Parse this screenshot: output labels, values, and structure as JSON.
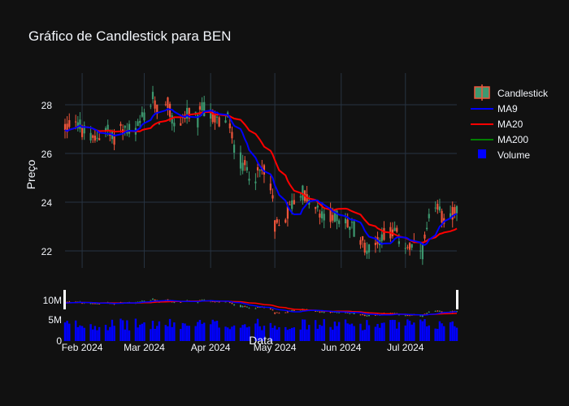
{
  "colors": {
    "background": "#111111",
    "grid": "#283442",
    "text": "#f2f5fa",
    "increasing": "#3d9970",
    "decreasing": "#ef553b",
    "ma9": "#0000ff",
    "ma20": "#ff0000",
    "ma200": "#008000",
    "volume": "#0000ff"
  },
  "chart_data": {
    "type": "candlestick",
    "title": "Gráfico de Candlestick para BEN",
    "ylabel": "Preço",
    "xlabel": "Data",
    "ylim": [
      21.3,
      29.3
    ],
    "y_ticks": [
      22,
      24,
      26,
      28
    ],
    "y_tick_labels": [
      "22",
      "24",
      "26",
      "28"
    ],
    "x_ticks": [
      "2024-02-01",
      "2024-03-01",
      "2024-04-01",
      "2024-05-01",
      "2024-06-01",
      "2024-07-01"
    ],
    "x_tick_labels": [
      "Feb 2024",
      "Mar 2024",
      "Apr 2024",
      "May 2024",
      "Jun 2024",
      "Jul 2024"
    ],
    "x_range": [
      "2024-01-24",
      "2024-07-25"
    ],
    "legend": {
      "placement": "top-right",
      "entries": [
        "Candlestick",
        "MA9",
        "MA20",
        "MA200",
        "Volume"
      ]
    },
    "rangeslider_volume_ticks": [
      0,
      5000000,
      10000000
    ],
    "rangeslider_volume_tick_labels": [
      "0",
      "5M",
      "10M"
    ],
    "anchors": [
      [
        "2024-01-25",
        27.1
      ],
      [
        "2024-01-29",
        27.5
      ],
      [
        "2024-02-01",
        26.9
      ],
      [
        "2024-02-06",
        26.5
      ],
      [
        "2024-02-12",
        27.1
      ],
      [
        "2024-02-15",
        26.6
      ],
      [
        "2024-02-19",
        27.0
      ],
      [
        "2024-02-23",
        27.0
      ],
      [
        "2024-02-26",
        26.9
      ],
      [
        "2024-02-29",
        27.4
      ],
      [
        "2024-03-05",
        28.2
      ],
      [
        "2024-03-08",
        27.5
      ],
      [
        "2024-03-12",
        28.0
      ],
      [
        "2024-03-15",
        27.1
      ],
      [
        "2024-03-19",
        27.5
      ],
      [
        "2024-03-22",
        27.6
      ],
      [
        "2024-03-26",
        27.3
      ],
      [
        "2024-03-28",
        27.9
      ],
      [
        "2024-04-02",
        27.5
      ],
      [
        "2024-04-05",
        27.3
      ],
      [
        "2024-04-09",
        27.4
      ],
      [
        "2024-04-12",
        26.3
      ],
      [
        "2024-04-16",
        25.5
      ],
      [
        "2024-04-19",
        25.2
      ],
      [
        "2024-04-23",
        25.1
      ],
      [
        "2024-04-26",
        25.4
      ],
      [
        "2024-04-29",
        24.8
      ],
      [
        "2024-05-01",
        23.1
      ],
      [
        "2024-05-03",
        23.0
      ],
      [
        "2024-05-07",
        23.6
      ],
      [
        "2024-05-10",
        24.1
      ],
      [
        "2024-05-14",
        24.4
      ],
      [
        "2024-05-17",
        24.0
      ],
      [
        "2024-05-21",
        23.6
      ],
      [
        "2024-05-24",
        23.3
      ],
      [
        "2024-05-28",
        23.5
      ],
      [
        "2024-05-31",
        23.3
      ],
      [
        "2024-06-04",
        23.1
      ],
      [
        "2024-06-07",
        22.9
      ],
      [
        "2024-06-11",
        22.4
      ],
      [
        "2024-06-14",
        22.0
      ],
      [
        "2024-06-18",
        22.5
      ],
      [
        "2024-06-21",
        22.7
      ],
      [
        "2024-06-25",
        22.8
      ],
      [
        "2024-06-28",
        22.5
      ],
      [
        "2024-07-02",
        22.2
      ],
      [
        "2024-07-05",
        22.1
      ],
      [
        "2024-07-09",
        22.0
      ],
      [
        "2024-07-12",
        23.2
      ],
      [
        "2024-07-16",
        23.6
      ],
      [
        "2024-07-19",
        23.4
      ],
      [
        "2024-07-24",
        23.6
      ]
    ]
  }
}
